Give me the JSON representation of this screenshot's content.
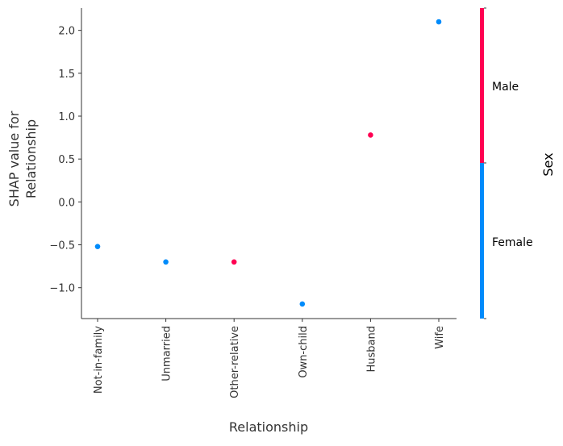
{
  "chart_data": {
    "type": "scatter",
    "xlabel": "Relationship",
    "ylabel": "SHAP value for\nRelationship",
    "categories": [
      "Not-in-family",
      "Unmarried",
      "Other-relative",
      "Own-child",
      "Husband",
      "Wife"
    ],
    "yticks": [
      2.0,
      1.5,
      1.0,
      0.5,
      0.0,
      -0.5,
      -1.0
    ],
    "ytick_labels": [
      "2.0",
      "1.5",
      "1.0",
      "0.5",
      "0.0",
      "−0.5",
      "−1.0"
    ],
    "ylim": [
      -1.36,
      2.26
    ],
    "grid": false,
    "points": [
      {
        "category": "Not-in-family",
        "y": -0.52,
        "color_value": "Female"
      },
      {
        "category": "Unmarried",
        "y": -0.7,
        "color_value": "Female"
      },
      {
        "category": "Other-relative",
        "y": -0.7,
        "color_value": "Male"
      },
      {
        "category": "Own-child",
        "y": -1.19,
        "color_value": "Female"
      },
      {
        "category": "Husband",
        "y": 0.78,
        "color_value": "Male"
      },
      {
        "category": "Wife",
        "y": 2.1,
        "color_value": "Female"
      }
    ],
    "colorbar": {
      "label": "Sex",
      "high_label": "Male",
      "low_label": "Female",
      "high_color": "#ff0052",
      "low_color": "#008bfb"
    }
  }
}
